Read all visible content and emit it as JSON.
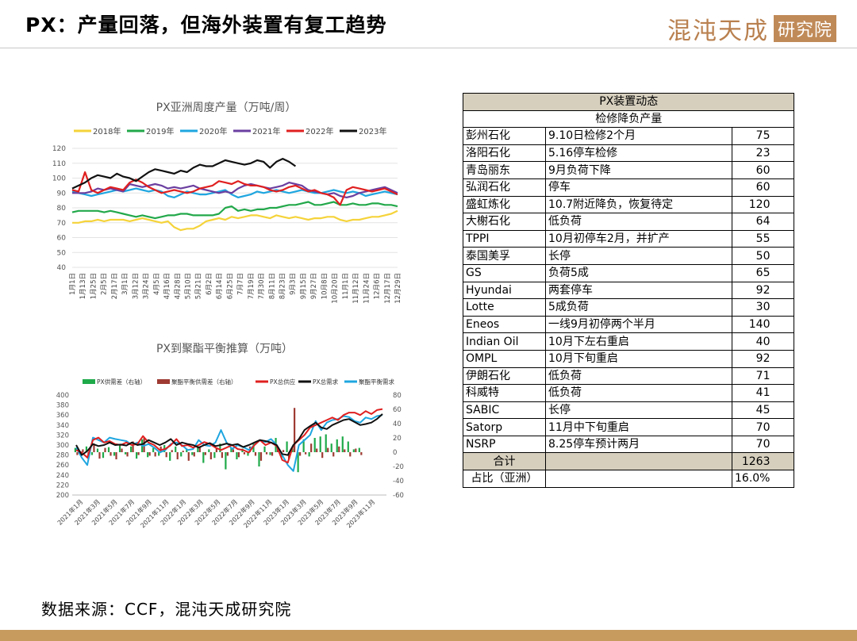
{
  "header": {
    "title": "PX：产量回落，但海外装置有复工趋势",
    "brand_main": "混沌天成",
    "brand_box": "研究院"
  },
  "source": "数据来源：CCF，混沌天成研究院",
  "colors": {
    "accent": "#c79a5e",
    "table_header": "#d6cfbe"
  },
  "chart_data": [
    {
      "type": "line",
      "title": "PX亚洲周度产量（万吨/周）",
      "ylim": [
        40,
        120
      ],
      "yticks": [
        40,
        50,
        60,
        70,
        80,
        90,
        100,
        110,
        120
      ],
      "xticks": [
        "1月1日",
        "1月13日",
        "1月25日",
        "2月5日",
        "2月17日",
        "3月1日",
        "3月12日",
        "3月24日",
        "4月5日",
        "4月16日",
        "4月28日",
        "5月10日",
        "5月21日",
        "6月2日",
        "6月14日",
        "6月25日",
        "7月7日",
        "7月19日",
        "7月30日",
        "8月11日",
        "8月23日",
        "9月3日",
        "9月15日",
        "9月27日",
        "10月8日",
        "10月20日",
        "11月1日",
        "11月12日",
        "11月24日",
        "12月6日",
        "12月17日",
        "12月29日"
      ],
      "series": [
        {
          "name": "2018年",
          "color": "#f5d33a",
          "values": [
            70,
            70,
            71,
            71,
            72,
            71,
            72,
            72,
            72,
            71,
            72,
            73,
            72,
            71,
            70,
            71,
            67,
            65,
            66,
            66,
            68,
            71,
            72,
            73,
            72,
            74,
            73,
            74,
            75,
            75,
            74,
            73,
            75,
            74,
            73,
            74,
            73,
            72,
            73,
            73,
            74,
            74,
            72,
            71,
            72,
            72,
            73,
            74,
            74,
            75,
            76,
            78
          ]
        },
        {
          "name": "2019年",
          "color": "#22a84a",
          "values": [
            77,
            78,
            78,
            78,
            78,
            77,
            78,
            77,
            76,
            75,
            74,
            75,
            74,
            73,
            74,
            75,
            75,
            76,
            76,
            75,
            75,
            75,
            75,
            76,
            80,
            81,
            78,
            79,
            78,
            79,
            79,
            80,
            80,
            81,
            82,
            82,
            83,
            84,
            82,
            82,
            83,
            84,
            82,
            82,
            83,
            82,
            82,
            83,
            83,
            82,
            82,
            81
          ]
        },
        {
          "name": "2020年",
          "color": "#1fa6e0",
          "values": [
            91,
            90,
            89,
            88,
            89,
            90,
            91,
            92,
            91,
            92,
            93,
            92,
            91,
            92,
            91,
            88,
            87,
            89,
            91,
            90,
            89,
            89,
            90,
            91,
            92,
            89,
            87,
            88,
            89,
            91,
            90,
            91,
            92,
            91,
            90,
            91,
            92,
            91,
            90,
            90,
            91,
            92,
            91,
            90,
            91,
            90,
            88,
            89,
            90,
            91,
            90,
            89
          ]
        },
        {
          "name": "2021年",
          "color": "#6b3fa0",
          "values": [
            90,
            90,
            90,
            91,
            93,
            92,
            93,
            92,
            91,
            96,
            95,
            94,
            95,
            96,
            95,
            93,
            94,
            93,
            94,
            95,
            93,
            92,
            91,
            90,
            91,
            90,
            93,
            95,
            96,
            95,
            94,
            93,
            94,
            95,
            97,
            96,
            95,
            92,
            91,
            90,
            89,
            90,
            88,
            87,
            88,
            90,
            91,
            92,
            93,
            94,
            92,
            90
          ]
        },
        {
          "name": "2022年",
          "color": "#e02020",
          "values": [
            92,
            91,
            104,
            92,
            90,
            92,
            94,
            93,
            92,
            97,
            99,
            97,
            94,
            92,
            90,
            91,
            92,
            91,
            90,
            91,
            93,
            94,
            95,
            98,
            97,
            96,
            98,
            96,
            95,
            95,
            94,
            92,
            91,
            92,
            94,
            95,
            93,
            91,
            92,
            90,
            89,
            87,
            82,
            92,
            94,
            93,
            92,
            91,
            92,
            93,
            91,
            89
          ]
        },
        {
          "name": "2023年",
          "color": "#111111",
          "values": [
            93,
            95,
            97,
            100,
            102,
            101,
            100,
            103,
            101,
            100,
            98,
            101,
            104,
            106,
            105,
            104,
            103,
            105,
            104,
            107,
            109,
            108,
            108,
            110,
            112,
            111,
            110,
            109,
            110,
            112,
            111,
            107,
            111,
            113,
            111,
            108
          ]
        }
      ]
    },
    {
      "type": "line",
      "title": "PX到聚酯平衡推算（万吨）",
      "ylim": [
        200,
        400
      ],
      "yticks": [
        200,
        220,
        240,
        260,
        280,
        300,
        320,
        340,
        360,
        380,
        400
      ],
      "y2lim": [
        -60,
        80
      ],
      "y2ticks": [
        -60,
        -40,
        -20,
        0,
        20,
        40,
        60,
        80
      ],
      "xticks": [
        "2021年1月",
        "2021年3月",
        "2021年5月",
        "2021年7月",
        "2021年9月",
        "2021年11月",
        "2022年1月",
        "2022年3月",
        "2022年5月",
        "2022年7月",
        "2022年9月",
        "2022年11月",
        "2023年1月",
        "2023年3月",
        "2023年5月",
        "2023年7月",
        "2023年9月",
        "2023年11月"
      ],
      "bars": [
        {
          "name": "PX供需差（右轴）",
          "color": "#1faa4a",
          "values": [
            6,
            -3,
            8,
            -4,
            5,
            -8,
            7,
            -5,
            10,
            -3,
            8,
            -9,
            18,
            -7,
            6,
            -5,
            10,
            -12,
            8,
            -6,
            5,
            -4,
            9,
            -15,
            4,
            -8,
            12,
            -24,
            6,
            -10,
            5,
            -5,
            12,
            -20,
            8,
            -4,
            20,
            -8,
            15,
            5,
            -28,
            18,
            -6,
            20,
            22,
            25,
            12,
            18,
            22,
            15,
            4,
            6
          ]
        },
        {
          "name": "聚酯平衡供需差（右轴）",
          "color": "#9e3a32",
          "values": [
            -4,
            4,
            -10,
            12,
            -9,
            6,
            -5,
            -10,
            5,
            -6,
            15,
            -4,
            20,
            -5,
            -6,
            8,
            -7,
            3,
            -10,
            2,
            -12,
            -6,
            8,
            -4,
            -10,
            6,
            -8,
            -5,
            4,
            -7,
            -3,
            8,
            -5,
            -12,
            -3,
            -5,
            5,
            3,
            -10,
            62,
            -5,
            -3,
            12,
            5,
            -8,
            6,
            -6,
            8,
            4,
            -6,
            5,
            -4
          ]
        },
        {
          "name": "PX总供应",
          "color": "#e02020",
          "values": [
            290,
            285,
            275,
            310,
            315,
            305,
            308,
            302,
            300,
            305,
            300,
            302,
            318,
            305,
            300,
            290,
            292,
            300,
            312,
            298,
            300,
            295,
            300,
            306,
            302,
            295,
            290,
            295,
            300,
            292,
            290,
            285,
            300,
            310,
            300,
            305,
            298,
            270,
            265,
            300,
            310,
            320,
            335,
            340,
            345,
            350,
            355,
            350,
            360,
            365,
            365,
            360,
            368,
            362,
            370,
            372
          ]
        },
        {
          "name": "PX总需求",
          "color": "#111111",
          "values": [
            300,
            280,
            288,
            302,
            298,
            300,
            305,
            300,
            301,
            299,
            305,
            300,
            302,
            310,
            305,
            300,
            305,
            312,
            300,
            305,
            302,
            300,
            295,
            300,
            304,
            298,
            300,
            303,
            300,
            302,
            296,
            300,
            305,
            310,
            308,
            305,
            300,
            282,
            280,
            300,
            312,
            330,
            338,
            345,
            335,
            332,
            340,
            345,
            350,
            352,
            346,
            340,
            342,
            345,
            352,
            362
          ]
        },
        {
          "name": "聚酯平衡需求",
          "color": "#1fa6e0",
          "values": [
            295,
            275,
            260,
            315,
            310,
            305,
            315,
            312,
            310,
            308,
            300,
            305,
            298,
            302,
            295,
            285,
            290,
            302,
            305,
            300,
            290,
            292,
            310,
            300,
            298,
            305,
            330,
            305,
            292,
            300,
            296,
            290,
            300,
            310,
            306,
            312,
            300,
            280,
            260,
            248,
            300,
            310,
            320,
            348,
            330,
            345,
            350,
            352,
            358,
            356,
            348,
            345,
            355,
            352,
            358,
            360
          ]
        }
      ],
      "legend": [
        "PX供需差（右轴）",
        "聚酯平衡供需差（右轴）",
        "PX总供应",
        "PX总需求",
        "聚酯平衡需求"
      ]
    },
    {
      "type": "table",
      "title": "PX装置动态",
      "subtitle": "检修降负产量",
      "rows": [
        [
          "彭州石化",
          "9.10日检修2个月",
          "75"
        ],
        [
          "洛阳石化",
          "5.16停车检修",
          "23"
        ],
        [
          "青岛丽东",
          "9月负荷下降",
          "60"
        ],
        [
          "弘润石化",
          "停车",
          "60"
        ],
        [
          "盛虹炼化",
          "10.7附近降负，恢复待定",
          "120"
        ],
        [
          "大榭石化",
          "低负荷",
          "64"
        ],
        [
          "TPPI",
          "10月初停车2月，并扩产",
          "55"
        ],
        [
          "泰国美孚",
          "长停",
          "50"
        ],
        [
          "GS",
          "负荷5成",
          "65"
        ],
        [
          "Hyundai",
          "两套停车",
          "92"
        ],
        [
          "Lotte",
          "5成负荷",
          "30"
        ],
        [
          "Eneos",
          "一线9月初停两个半月",
          "140"
        ],
        [
          "Indian Oil",
          "10月下左右重启",
          "40"
        ],
        [
          "OMPL",
          "10月下旬重启",
          "92"
        ],
        [
          "伊朗石化",
          "低负荷",
          "71"
        ],
        [
          "科威特",
          "低负荷",
          "41"
        ],
        [
          "SABIC",
          "长停",
          "45"
        ],
        [
          "Satorp",
          "11月中下旬重启",
          "70"
        ],
        [
          "NSRP",
          "8.25停车预计两月",
          "70"
        ]
      ],
      "total": {
        "label": "合计",
        "value": "1263"
      },
      "share": {
        "label": "占比（亚洲）",
        "value": "16.0%"
      }
    }
  ]
}
